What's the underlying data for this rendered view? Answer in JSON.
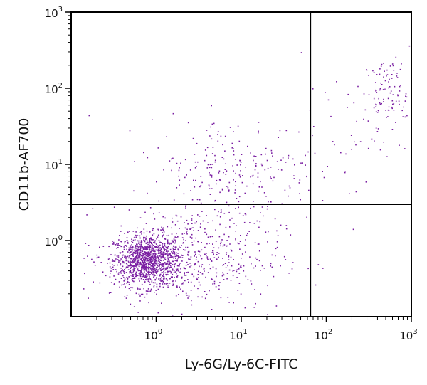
{
  "chart_data": {
    "type": "scatter",
    "title": "",
    "xlabel": "Ly-6G/Ly-6C-FITC",
    "ylabel": "CD11b-AF700",
    "x_scale": "log",
    "y_scale": "log",
    "xlim": [
      0.1,
      1000
    ],
    "ylim": [
      0.1,
      1000
    ],
    "x_ticks": [
      {
        "base": "10",
        "exp": "0",
        "value": 1
      },
      {
        "base": "10",
        "exp": "1",
        "value": 10
      },
      {
        "base": "10",
        "exp": "2",
        "value": 100
      },
      {
        "base": "10",
        "exp": "3",
        "value": 1000
      }
    ],
    "y_ticks": [
      {
        "base": "10",
        "exp": "0",
        "value": 1
      },
      {
        "base": "10",
        "exp": "1",
        "value": 10
      },
      {
        "base": "10",
        "exp": "2",
        "value": 100
      },
      {
        "base": "10",
        "exp": "3",
        "value": 1000
      }
    ],
    "gates": {
      "x": 65,
      "y": 3
    },
    "grid": false,
    "point_color": "#7a1fa2",
    "populations": [
      {
        "center": [
          0.8,
          0.55
        ],
        "spread": [
          0.2,
          0.17
        ],
        "count": 1250
      },
      {
        "center": [
          3.0,
          0.6
        ],
        "spread": [
          0.5,
          0.35
        ],
        "count": 480
      },
      {
        "center": [
          8.0,
          8.0
        ],
        "spread": [
          0.5,
          0.35
        ],
        "count": 260
      },
      {
        "center": [
          550,
          90
        ],
        "spread": [
          0.15,
          0.22
        ],
        "count": 110
      },
      {
        "center": [
          200,
          25
        ],
        "spread": [
          0.3,
          0.3
        ],
        "count": 40
      }
    ]
  }
}
